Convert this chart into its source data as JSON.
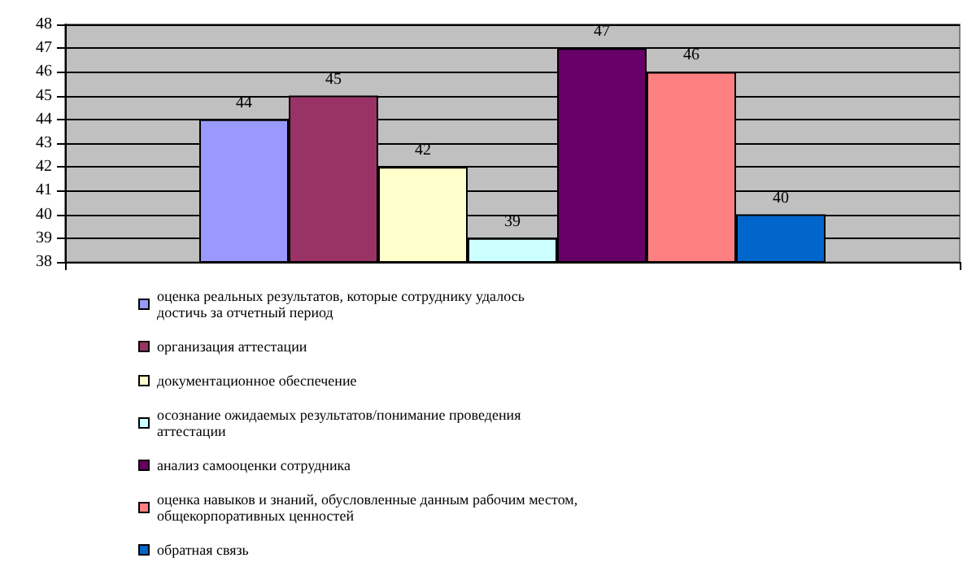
{
  "chart_data": {
    "type": "bar",
    "categories": [
      null
    ],
    "series": [
      {
        "name": "оценка реальных результатов, которые сотруднику удалось достичь за отчетный период",
        "color": "#9999ff",
        "values": [
          44
        ]
      },
      {
        "name": "организация аттестации",
        "color": "#993366",
        "values": [
          45
        ]
      },
      {
        "name": "документационное обеспечение",
        "color": "#ffffcc",
        "values": [
          42
        ]
      },
      {
        "name": "осознание ожидаемых результатов/понимание проведения аттестации",
        "color": "#ccffff",
        "values": [
          39
        ]
      },
      {
        "name": "анализ самооценки сотрудника",
        "color": "#660066",
        "values": [
          47
        ]
      },
      {
        "name": "оценка навыков и знаний, обусловленные данным рабочим местом, общекорпоративных ценностей",
        "color": "#ff8080",
        "values": [
          46
        ]
      },
      {
        "name": "обратная связь",
        "color": "#0066cc",
        "values": [
          40
        ]
      }
    ],
    "ylim": [
      38,
      48
    ],
    "yticks": [
      38,
      39,
      40,
      41,
      42,
      43,
      44,
      45,
      46,
      47,
      48
    ],
    "grid": "y",
    "data_labels": true,
    "legend": "bottom"
  }
}
